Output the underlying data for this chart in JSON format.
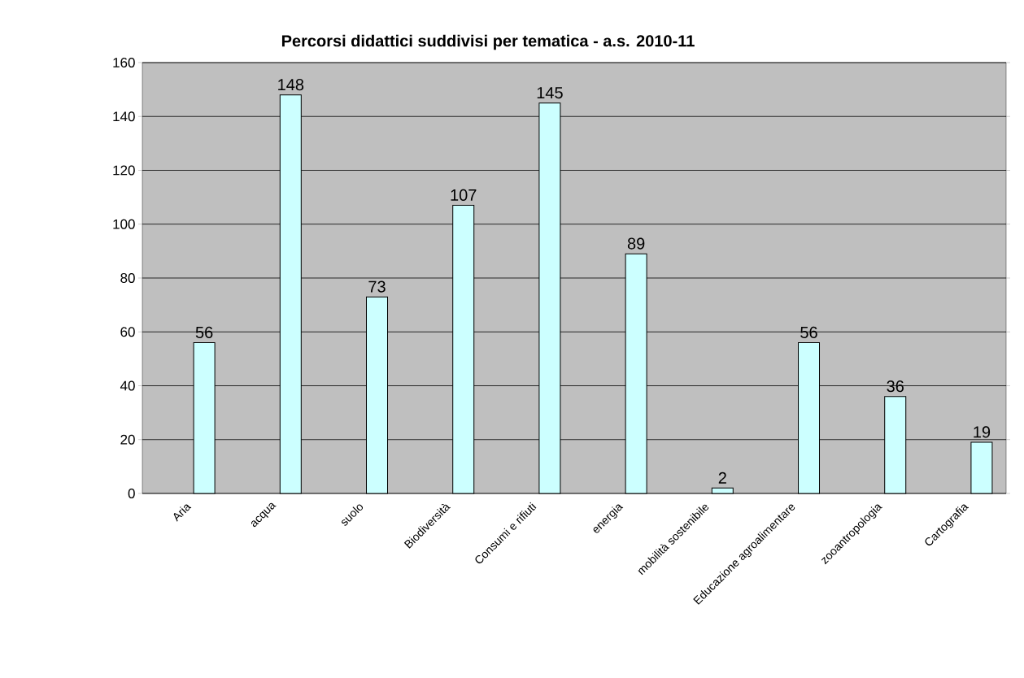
{
  "chart_data": {
    "type": "bar",
    "title": "Percorsi didattici suddivisi per tematica - a.s. 2010-11",
    "categories": [
      "Aria",
      "acqua",
      "suolo",
      "Biodiversità",
      "Consumi e rifiuti",
      "energia",
      "mobilità sostenibile",
      "Educazione agroalimentare",
      "zooantropologia",
      "Cartografia"
    ],
    "values": [
      56,
      148,
      73,
      107,
      145,
      89,
      2,
      56,
      36,
      19
    ],
    "color": "#ccffff",
    "ylim": [
      0,
      160
    ],
    "yticks": [
      0,
      20,
      40,
      60,
      80,
      100,
      120,
      140,
      160
    ],
    "grid": "y",
    "data_labels": true
  }
}
